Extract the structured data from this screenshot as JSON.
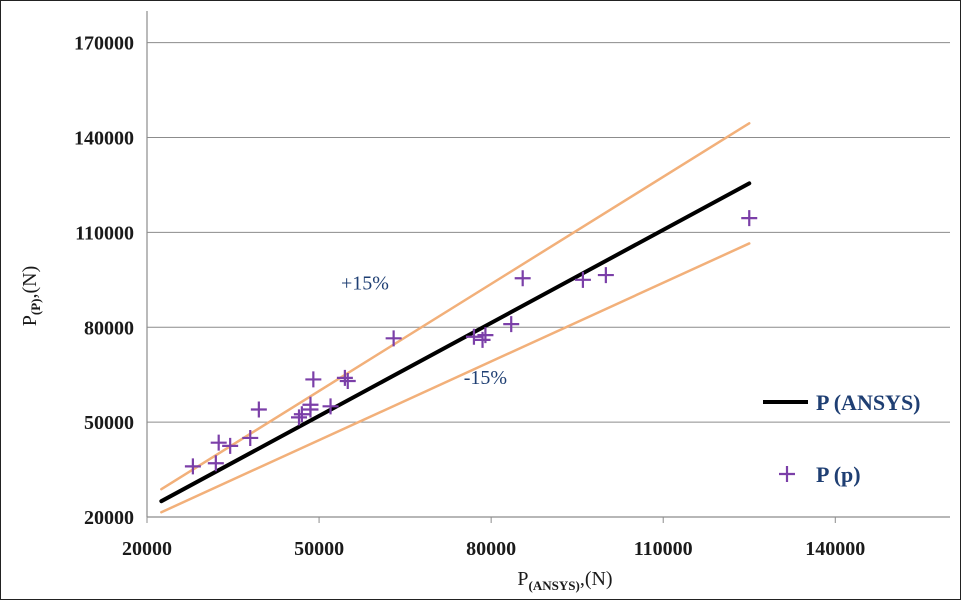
{
  "chart_data": {
    "type": "line",
    "xlabel": {
      "main": "P",
      "sub": "(ANSYS)",
      "unit": ",(N)"
    },
    "ylabel": {
      "main": "P",
      "sub": "(P)",
      "unit": ",(N)"
    },
    "xlim": [
      20000,
      160000
    ],
    "ylim": [
      20000,
      180000
    ],
    "x_ticks": [
      20000,
      50000,
      80000,
      110000,
      140000
    ],
    "y_ticks": [
      20000,
      50000,
      80000,
      110000,
      140000,
      170000
    ],
    "grid": "horizontal",
    "legend_position": "right",
    "colors": {
      "ansys": "#000000",
      "band": "#f2b07a",
      "points": "#7b3fa8",
      "text": "#1f3f73",
      "grid": "#8c8c8c"
    },
    "annotations": [
      {
        "text": "+15%",
        "x": 58000,
        "y": 92000
      },
      {
        "text": "-15%",
        "x": 79000,
        "y": 62000
      }
    ],
    "series": [
      {
        "name": "P (ANSYS)",
        "kind": "line",
        "x": [
          22500,
          125000
        ],
        "y": [
          25000,
          125500
        ]
      },
      {
        "kind": "line",
        "x": [
          22500,
          125000
        ],
        "y": [
          28800,
          144500
        ]
      },
      {
        "kind": "line",
        "x": [
          22500,
          125000
        ],
        "y": [
          21500,
          106500
        ]
      },
      {
        "name": "P (p)",
        "kind": "points",
        "marker": "+",
        "x": [
          28000,
          32000,
          32500,
          34500,
          38000,
          39500,
          46500,
          47000,
          48500,
          49000,
          48500,
          52000,
          54500,
          55000,
          63000,
          77000,
          79000,
          78500,
          83500,
          85500,
          96000,
          100000,
          125000
        ],
        "y": [
          36000,
          37000,
          43500,
          42500,
          45000,
          54000,
          51500,
          52500,
          55500,
          63500,
          54000,
          55000,
          64000,
          63000,
          76500,
          77000,
          77500,
          76000,
          81000,
          95500,
          95000,
          96500,
          114500
        ]
      }
    ]
  }
}
